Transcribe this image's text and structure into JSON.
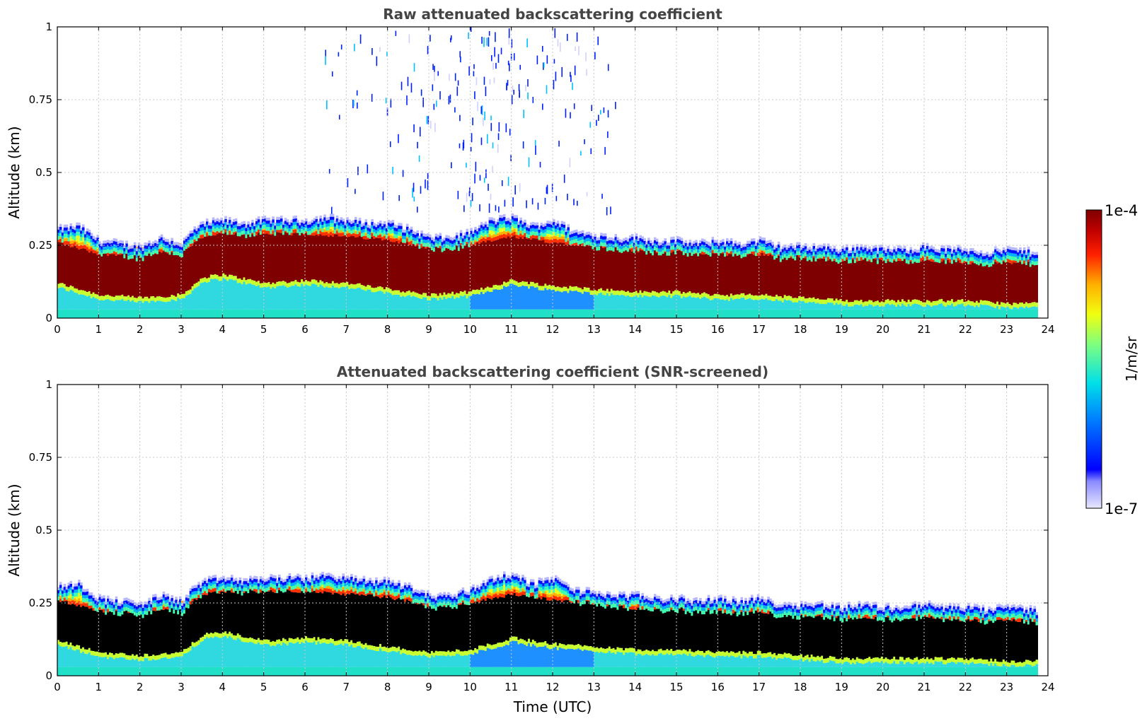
{
  "chart_data": [
    {
      "type": "heatmap",
      "title": "Raw attenuated backscattering coefficient",
      "xlabel": "",
      "ylabel": "Altitude (km)",
      "xlim": [
        0,
        24
      ],
      "ylim": [
        0,
        1
      ],
      "xticks": [
        0,
        1,
        2,
        3,
        4,
        5,
        6,
        7,
        8,
        9,
        10,
        11,
        12,
        13,
        14,
        15,
        16,
        17,
        18,
        19,
        20,
        21,
        22,
        23,
        24
      ],
      "yticks": [
        0,
        0.25,
        0.5,
        0.75,
        1
      ],
      "ytick_labels": [
        "0",
        "0.25",
        "0.5",
        "0.75",
        "1"
      ],
      "grid": true,
      "data_end_hour": 23.75,
      "layer_top_km": [
        [
          0,
          0.3
        ],
        [
          0.5,
          0.31
        ],
        [
          1,
          0.26
        ],
        [
          1.5,
          0.25
        ],
        [
          2,
          0.24
        ],
        [
          2.5,
          0.27
        ],
        [
          3,
          0.25
        ],
        [
          3.3,
          0.3
        ],
        [
          3.6,
          0.32
        ],
        [
          4,
          0.33
        ],
        [
          4.5,
          0.32
        ],
        [
          5,
          0.33
        ],
        [
          5.5,
          0.33
        ],
        [
          6,
          0.33
        ],
        [
          6.5,
          0.34
        ],
        [
          7,
          0.33
        ],
        [
          7.5,
          0.32
        ],
        [
          8,
          0.32
        ],
        [
          8.5,
          0.3
        ],
        [
          9,
          0.27
        ],
        [
          9.5,
          0.27
        ],
        [
          10,
          0.29
        ],
        [
          10.5,
          0.33
        ],
        [
          11,
          0.34
        ],
        [
          11.5,
          0.31
        ],
        [
          12,
          0.33
        ],
        [
          12.5,
          0.29
        ],
        [
          13,
          0.28
        ],
        [
          13.5,
          0.27
        ],
        [
          14,
          0.27
        ],
        [
          14.5,
          0.26
        ],
        [
          15,
          0.26
        ],
        [
          15.5,
          0.25
        ],
        [
          16,
          0.26
        ],
        [
          16.5,
          0.25
        ],
        [
          17,
          0.26
        ],
        [
          17.5,
          0.24
        ],
        [
          18,
          0.24
        ],
        [
          18.5,
          0.24
        ],
        [
          19,
          0.23
        ],
        [
          19.5,
          0.24
        ],
        [
          20,
          0.23
        ],
        [
          20.5,
          0.23
        ],
        [
          21,
          0.24
        ],
        [
          21.5,
          0.23
        ],
        [
          22,
          0.23
        ],
        [
          22.5,
          0.22
        ],
        [
          23,
          0.23
        ],
        [
          23.75,
          0.22
        ]
      ],
      "strong_layer_km": [
        [
          0,
          0.12,
          0.26
        ],
        [
          1,
          0.08,
          0.22
        ],
        [
          2,
          0.07,
          0.22
        ],
        [
          3,
          0.08,
          0.23
        ],
        [
          3.5,
          0.14,
          0.28
        ],
        [
          4,
          0.15,
          0.29
        ],
        [
          5,
          0.12,
          0.29
        ],
        [
          6,
          0.13,
          0.29
        ],
        [
          7,
          0.12,
          0.28
        ],
        [
          8,
          0.1,
          0.27
        ],
        [
          9,
          0.08,
          0.24
        ],
        [
          10,
          0.09,
          0.25
        ],
        [
          11,
          0.13,
          0.28
        ],
        [
          12,
          0.11,
          0.26
        ],
        [
          13,
          0.1,
          0.25
        ],
        [
          14,
          0.09,
          0.23
        ],
        [
          15,
          0.09,
          0.23
        ],
        [
          16,
          0.08,
          0.22
        ],
        [
          17,
          0.08,
          0.22
        ],
        [
          18,
          0.07,
          0.21
        ],
        [
          19,
          0.06,
          0.2
        ],
        [
          20,
          0.06,
          0.2
        ],
        [
          21,
          0.06,
          0.2
        ],
        [
          22,
          0.06,
          0.19
        ],
        [
          23,
          0.05,
          0.19
        ],
        [
          23.75,
          0.05,
          0.19
        ]
      ],
      "surface_value_note": ""
    },
    {
      "type": "heatmap",
      "title": "Attenuated backscattering coefficient (SNR-screened)",
      "xlabel": "Time (UTC)",
      "ylabel": "Altitude (km)",
      "xlim": [
        0,
        24
      ],
      "ylim": [
        0,
        1
      ],
      "xticks": [
        0,
        1,
        2,
        3,
        4,
        5,
        6,
        7,
        8,
        9,
        10,
        11,
        12,
        13,
        14,
        15,
        16,
        17,
        18,
        19,
        20,
        21,
        22,
        23,
        24
      ],
      "yticks": [
        0,
        0.25,
        0.5,
        0.75,
        1
      ],
      "ytick_labels": [
        "0",
        "0.25",
        "0.5",
        "0.75",
        "1"
      ],
      "grid": true,
      "data_end_hour": 23.75,
      "screened_color": "#000000"
    }
  ],
  "colorbar": {
    "label": "1/m/sr",
    "min_label": "1e-7",
    "max_label": "1e-4",
    "min": 1e-07,
    "max": 0.0001,
    "scale": "log",
    "colormap": "jet-like",
    "low_color": "#e8e8ff",
    "high_color": "#7f0000"
  }
}
